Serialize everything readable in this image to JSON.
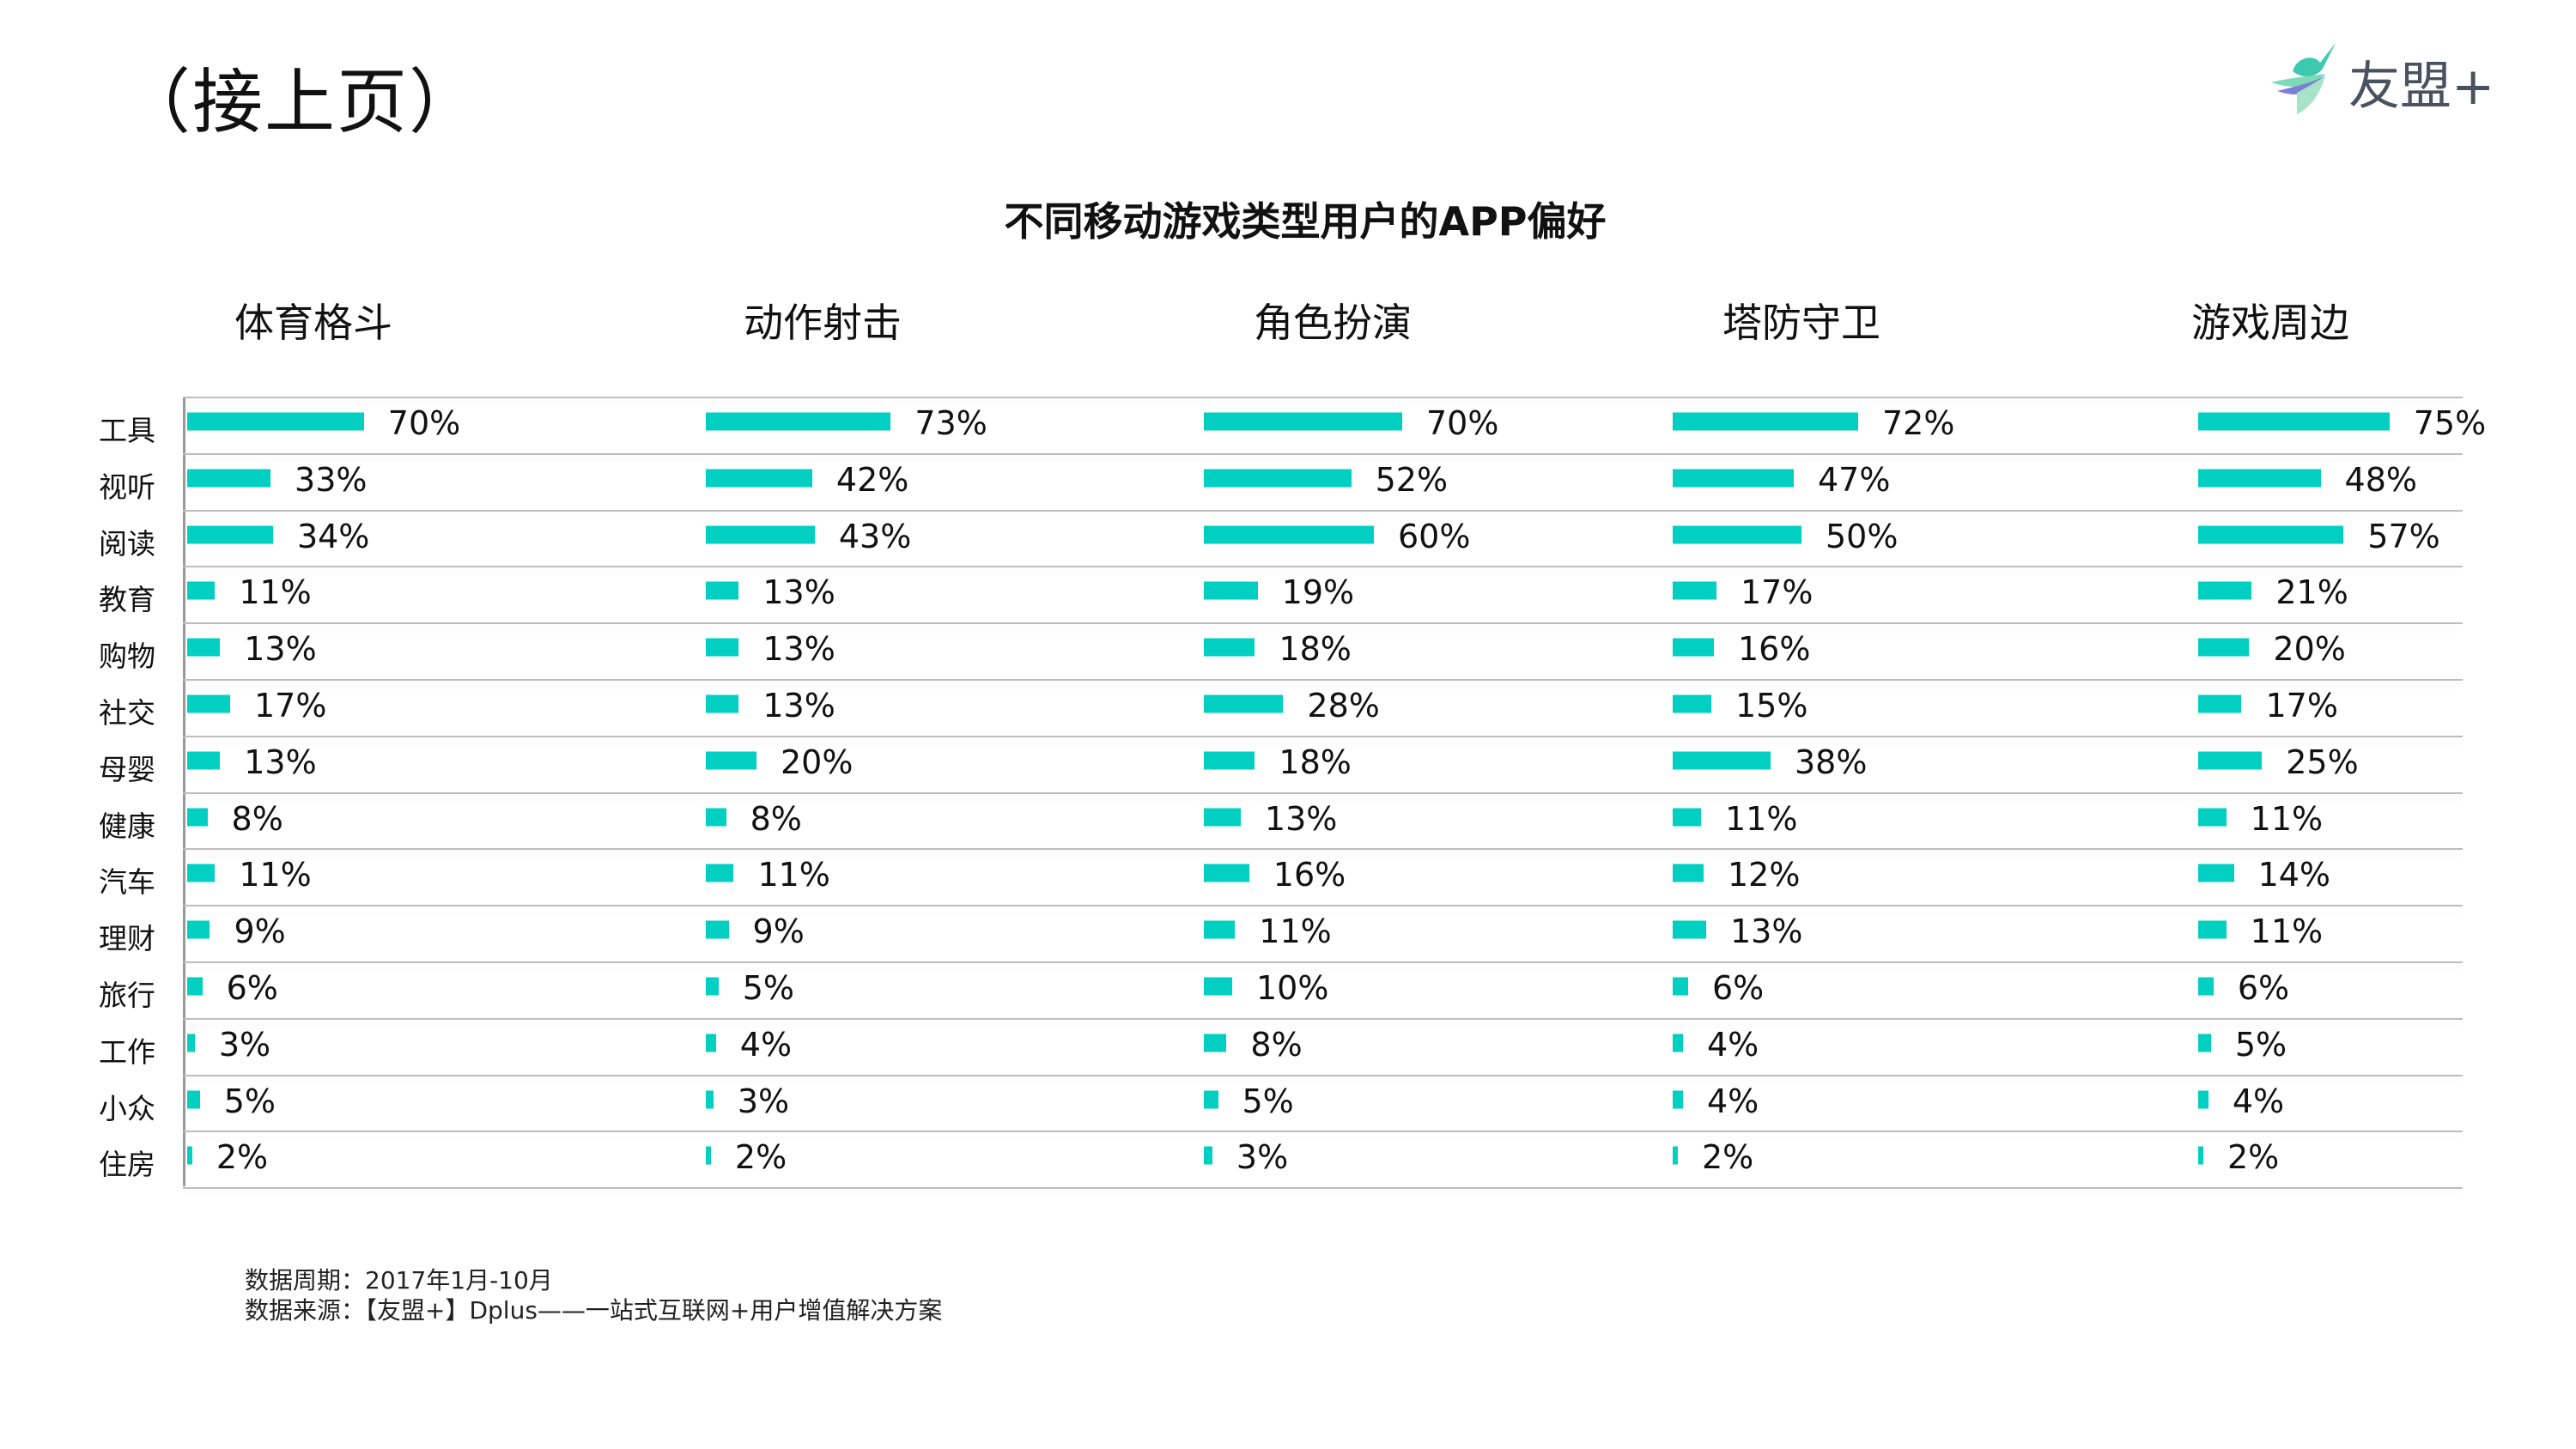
{
  "page_title": "（接上页）",
  "logo": {
    "text": "友盟+"
  },
  "footnotes": {
    "period": "数据周期：2017年1月-10月",
    "source": "数据来源：【友盟+】Dplus——一站式互联网+用户增值解决方案"
  },
  "colors": {
    "bar": "#00cfc1",
    "text": "#111111",
    "grid": "#bdbdbd"
  },
  "chart_data": {
    "type": "bar",
    "orientation": "horizontal",
    "title": "不同移动游戏类型用户的APP偏好",
    "unit": "%",
    "categories": [
      "工具",
      "视听",
      "阅读",
      "教育",
      "购物",
      "社交",
      "母婴",
      "健康",
      "汽车",
      "理财",
      "旅行",
      "工作",
      "小众",
      "住房"
    ],
    "series": [
      {
        "name": "体育格斗",
        "values": [
          70,
          33,
          34,
          11,
          13,
          17,
          13,
          8,
          11,
          9,
          6,
          3,
          5,
          2
        ]
      },
      {
        "name": "动作射击",
        "values": [
          73,
          42,
          43,
          13,
          13,
          13,
          20,
          8,
          11,
          9,
          5,
          4,
          3,
          2
        ]
      },
      {
        "name": "角色扮演",
        "values": [
          70,
          52,
          60,
          19,
          18,
          28,
          18,
          13,
          16,
          11,
          10,
          8,
          5,
          3
        ]
      },
      {
        "name": "塔防守卫",
        "values": [
          72,
          47,
          50,
          17,
          16,
          15,
          38,
          11,
          12,
          13,
          6,
          4,
          4,
          2
        ]
      },
      {
        "name": "游戏周边",
        "values": [
          75,
          48,
          57,
          21,
          20,
          17,
          25,
          11,
          14,
          11,
          6,
          5,
          4,
          2
        ]
      }
    ]
  }
}
